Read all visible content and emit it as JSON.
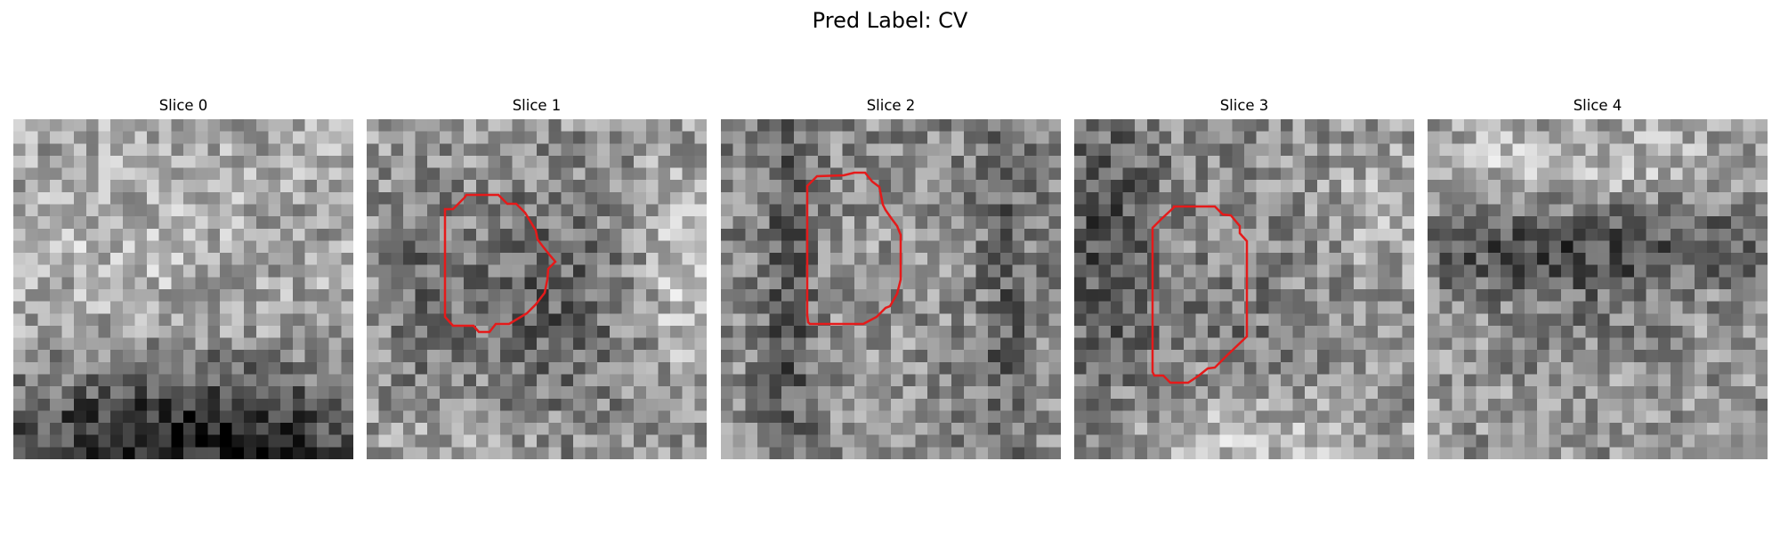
{
  "figure": {
    "title": "Pred Label: CV",
    "contour_color": "#e51a1a",
    "colormap": "gray",
    "slices": [
      {
        "label": "Slice 0",
        "has_contour": false
      },
      {
        "label": "Slice 1",
        "has_contour": true
      },
      {
        "label": "Slice 2",
        "has_contour": true
      },
      {
        "label": "Slice 3",
        "has_contour": true
      },
      {
        "label": "Slice 4",
        "has_contour": false
      }
    ]
  }
}
